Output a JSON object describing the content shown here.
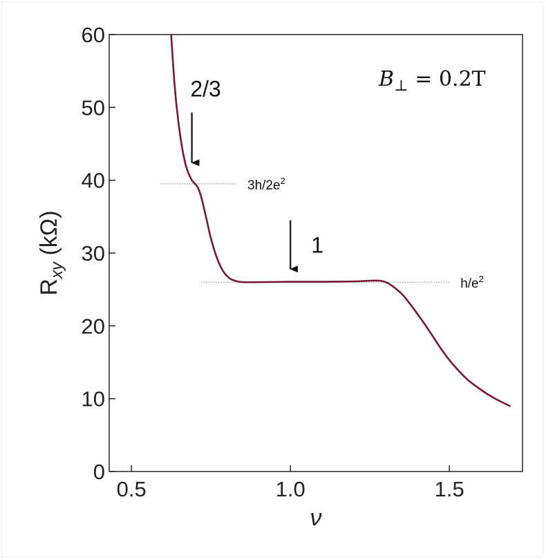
{
  "chart_data": {
    "type": "line",
    "xlabel": "ν",
    "ylabel": "R",
    "ylabel_sub": "xy",
    "ylabel_unit": " (kΩ)",
    "xlim": [
      0.43,
      1.73
    ],
    "ylim": [
      0,
      60
    ],
    "x_ticks": [
      0.5,
      1.0,
      1.5
    ],
    "x_tick_labels": [
      "0.5",
      "1.0",
      "1.5"
    ],
    "y_ticks": [
      0,
      10,
      20,
      30,
      40,
      50,
      60
    ],
    "y_tick_labels": [
      "0",
      "10",
      "20",
      "30",
      "40",
      "50",
      "60"
    ],
    "grid": false,
    "line_color": "#7a1630",
    "series": [
      {
        "x": [
          0.625,
          0.63,
          0.635,
          0.64,
          0.645,
          0.65,
          0.66,
          0.67,
          0.68,
          0.69,
          0.7,
          0.71,
          0.72,
          0.73,
          0.74,
          0.75,
          0.77,
          0.79,
          0.81,
          0.83,
          0.85,
          0.9,
          1.0,
          1.1,
          1.2,
          1.25,
          1.28,
          1.3,
          1.32,
          1.35,
          1.38,
          1.41,
          1.44,
          1.47,
          1.5,
          1.53,
          1.56,
          1.6,
          1.64,
          1.69
        ],
        "y": [
          60,
          56.5,
          53.5,
          51,
          49,
          47.2,
          44.3,
          42.2,
          40.9,
          40.0,
          39.5,
          38.9,
          37.6,
          35.8,
          33.9,
          32.0,
          29.2,
          27.4,
          26.5,
          26.15,
          26.0,
          26.0,
          26.05,
          26.05,
          26.1,
          26.2,
          26.2,
          26.0,
          25.5,
          24.4,
          22.8,
          21.0,
          19.1,
          17.1,
          15.3,
          13.8,
          12.5,
          11.2,
          10.1,
          9.0
        ]
      }
    ],
    "reference_lines": [
      {
        "y": 39.5,
        "x_start": 0.59,
        "x_end": 0.83,
        "label": "3h/2e",
        "label_sup": "2"
      },
      {
        "y": 26.0,
        "x_start": 0.72,
        "x_end": 1.5,
        "label": "h/e",
        "label_sup": "2"
      }
    ],
    "annotations": [
      {
        "text": "2/3",
        "arrow_x": 0.69,
        "arrow_y_from": 49.3,
        "arrow_y_to": 42.4
      },
      {
        "text": "1",
        "arrow_x": 1.0,
        "arrow_y_from": 34.5,
        "arrow_y_to": 27.8
      }
    ],
    "field_label": {
      "symbol": "B",
      "sub": "⊥",
      "text": " = 0.2T"
    }
  }
}
